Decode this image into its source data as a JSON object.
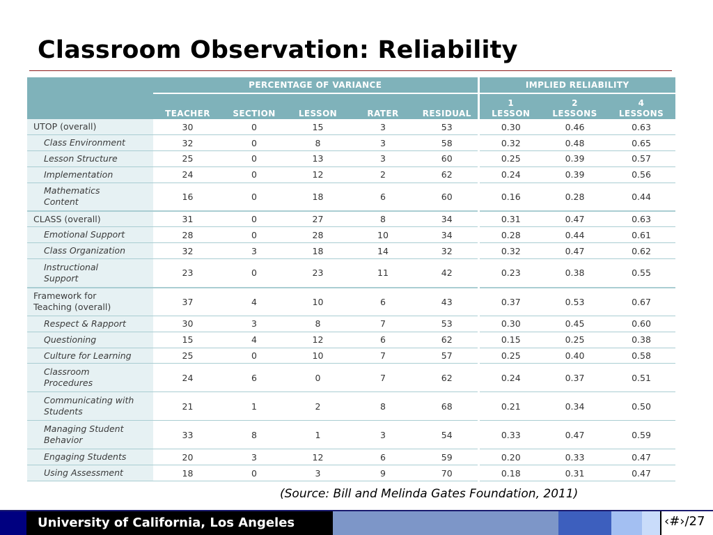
{
  "slide": {
    "title": "Classroom Observation: Reliability",
    "source": "(Source: Bill and Melinda Gates Foundation, 2011)",
    "footer": "University of California, Los Angeles",
    "page": "‹#›/27"
  },
  "table": {
    "group_headers": [
      "PERCENTAGE OF VARIANCE",
      "IMPLIED RELIABILITY"
    ],
    "columns": [
      [
        "TEACHER"
      ],
      [
        "SECTION"
      ],
      [
        "LESSON"
      ],
      [
        "RATER"
      ],
      [
        "RESIDUAL"
      ],
      [
        "1",
        "LESSON"
      ],
      [
        "2",
        "LESSONS"
      ],
      [
        "4",
        "LESSONS"
      ]
    ],
    "rows": [
      {
        "label": [
          "UTOP (overall)"
        ],
        "type": "overall",
        "values": [
          "30",
          "0",
          "15",
          "3",
          "53",
          "0.30",
          "0.46",
          "0.63"
        ]
      },
      {
        "label": [
          "Class Environment"
        ],
        "type": "sub",
        "values": [
          "32",
          "0",
          "8",
          "3",
          "58",
          "0.32",
          "0.48",
          "0.65"
        ]
      },
      {
        "label": [
          "Lesson Structure"
        ],
        "type": "sub",
        "values": [
          "25",
          "0",
          "13",
          "3",
          "60",
          "0.25",
          "0.39",
          "0.57"
        ]
      },
      {
        "label": [
          "Implementation"
        ],
        "type": "sub",
        "values": [
          "24",
          "0",
          "12",
          "2",
          "62",
          "0.24",
          "0.39",
          "0.56"
        ]
      },
      {
        "label": [
          "Mathematics",
          "Content"
        ],
        "type": "sub",
        "values": [
          "16",
          "0",
          "18",
          "6",
          "60",
          "0.16",
          "0.28",
          "0.44"
        ]
      },
      {
        "label": [
          "CLASS (overall)"
        ],
        "type": "overall",
        "values": [
          "31",
          "0",
          "27",
          "8",
          "34",
          "0.31",
          "0.47",
          "0.63"
        ]
      },
      {
        "label": [
          "Emotional Support"
        ],
        "type": "sub",
        "values": [
          "28",
          "0",
          "28",
          "10",
          "34",
          "0.28",
          "0.44",
          "0.61"
        ]
      },
      {
        "label": [
          "Class Organization"
        ],
        "type": "sub",
        "values": [
          "32",
          "3",
          "18",
          "14",
          "32",
          "0.32",
          "0.47",
          "0.62"
        ]
      },
      {
        "label": [
          "Instructional",
          "Support"
        ],
        "type": "sub",
        "values": [
          "23",
          "0",
          "23",
          "11",
          "42",
          "0.23",
          "0.38",
          "0.55"
        ]
      },
      {
        "label": [
          "Framework for",
          "Teaching (overall)"
        ],
        "type": "overall",
        "values": [
          "37",
          "4",
          "10",
          "6",
          "43",
          "0.37",
          "0.53",
          "0.67"
        ]
      },
      {
        "label": [
          "Respect & Rapport"
        ],
        "type": "sub",
        "values": [
          "30",
          "3",
          "8",
          "7",
          "53",
          "0.30",
          "0.45",
          "0.60"
        ]
      },
      {
        "label": [
          "Questioning"
        ],
        "type": "sub",
        "values": [
          "15",
          "4",
          "12",
          "6",
          "62",
          "0.15",
          "0.25",
          "0.38"
        ]
      },
      {
        "label": [
          "Culture for Learning"
        ],
        "type": "sub",
        "values": [
          "25",
          "0",
          "10",
          "7",
          "57",
          "0.25",
          "0.40",
          "0.58"
        ]
      },
      {
        "label": [
          "Classroom",
          "Procedures"
        ],
        "type": "sub",
        "values": [
          "24",
          "6",
          "0",
          "7",
          "62",
          "0.24",
          "0.37",
          "0.51"
        ]
      },
      {
        "label": [
          "Communicating with",
          "Students"
        ],
        "type": "sub",
        "values": [
          "21",
          "1",
          "2",
          "8",
          "68",
          "0.21",
          "0.34",
          "0.50"
        ]
      },
      {
        "label": [
          "Managing Student",
          "Behavior"
        ],
        "type": "sub",
        "values": [
          "33",
          "8",
          "1",
          "3",
          "54",
          "0.33",
          "0.47",
          "0.59"
        ]
      },
      {
        "label": [
          "Engaging Students"
        ],
        "type": "sub",
        "values": [
          "20",
          "3",
          "12",
          "6",
          "59",
          "0.20",
          "0.33",
          "0.47"
        ]
      },
      {
        "label": [
          "Using Assessment"
        ],
        "type": "sub",
        "values": [
          "18",
          "0",
          "3",
          "9",
          "70",
          "0.18",
          "0.31",
          "0.47"
        ]
      }
    ]
  },
  "colors": {
    "header": "#7fb2ba",
    "label_column": "#e6f1f3",
    "row_rule": "#a9cdd2",
    "title_rule": "#8b1a1a",
    "footer_dark": "#1a1a6e",
    "footer_navy": "#000080"
  }
}
